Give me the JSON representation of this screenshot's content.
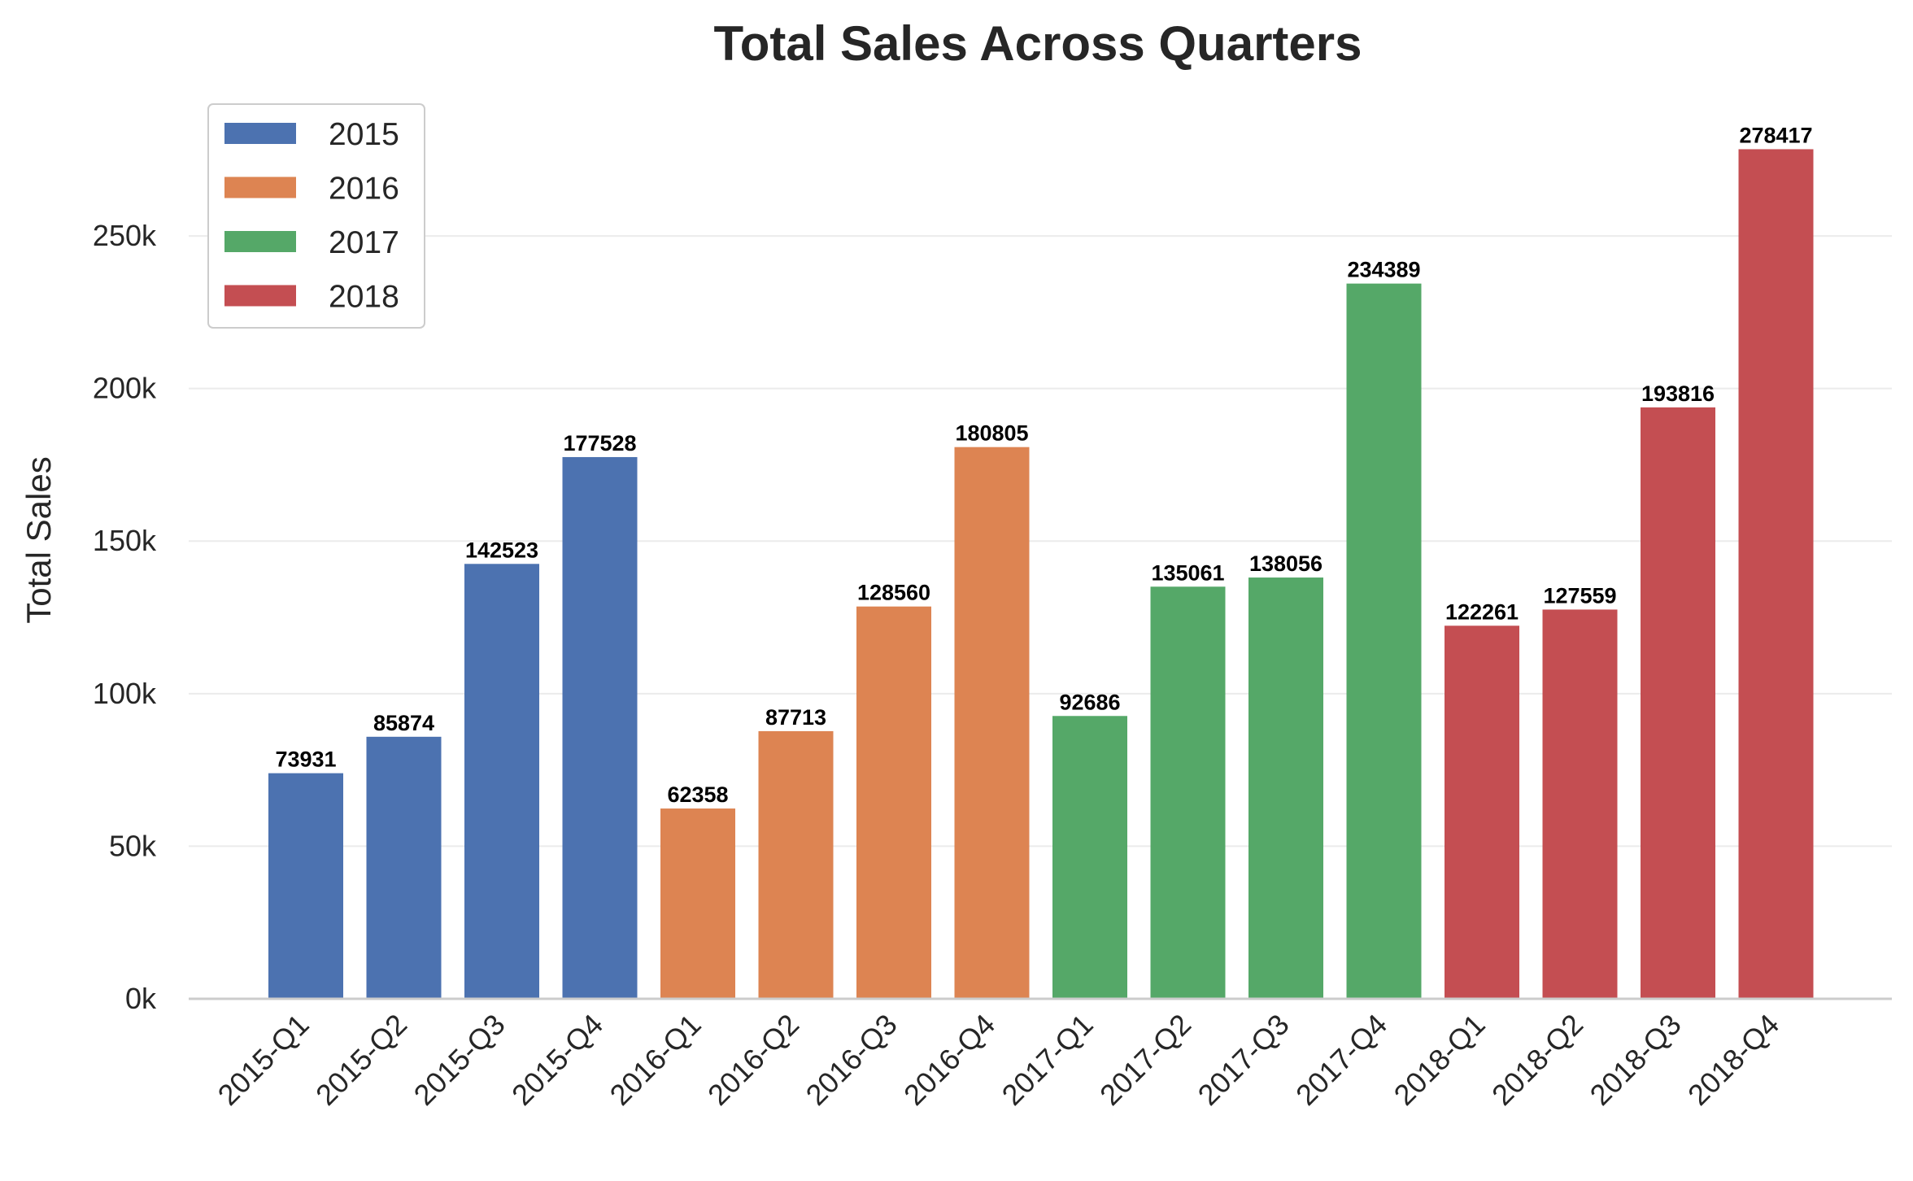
{
  "chart_data": {
    "type": "bar",
    "title": "Total Sales Across Quarters",
    "xlabel": "",
    "ylabel": "Total Sales",
    "ylim": [
      0,
      290000
    ],
    "yticks": [
      0,
      50000,
      100000,
      150000,
      200000,
      250000
    ],
    "ytick_labels": [
      "0k",
      "50k",
      "100k",
      "150k",
      "200k",
      "250k"
    ],
    "grid": "horizontal",
    "legend_position": "top-left",
    "categories": [
      "2015-Q1",
      "2015-Q2",
      "2015-Q3",
      "2015-Q4",
      "2016-Q1",
      "2016-Q2",
      "2016-Q3",
      "2016-Q4",
      "2017-Q1",
      "2017-Q2",
      "2017-Q3",
      "2017-Q4",
      "2018-Q1",
      "2018-Q2",
      "2018-Q3",
      "2018-Q4"
    ],
    "values": [
      73931,
      85874,
      142523,
      177528,
      62358,
      87713,
      128560,
      180805,
      92686,
      135061,
      138056,
      234389,
      122261,
      127559,
      193816,
      278417
    ],
    "data_labels": [
      "73931",
      "85874",
      "142523",
      "177528",
      "62358",
      "87713",
      "128560",
      "180805",
      "92686",
      "135061",
      "138056",
      "234389",
      "122261",
      "127559",
      "193816",
      "278417"
    ],
    "bar_groups": [
      0,
      0,
      0,
      0,
      1,
      1,
      1,
      1,
      2,
      2,
      2,
      2,
      3,
      3,
      3,
      3
    ],
    "series": [
      {
        "name": "2015",
        "color": "#4c72b0"
      },
      {
        "name": "2016",
        "color": "#dd8452"
      },
      {
        "name": "2017",
        "color": "#55a868"
      },
      {
        "name": "2018",
        "color": "#c44e52"
      }
    ]
  }
}
